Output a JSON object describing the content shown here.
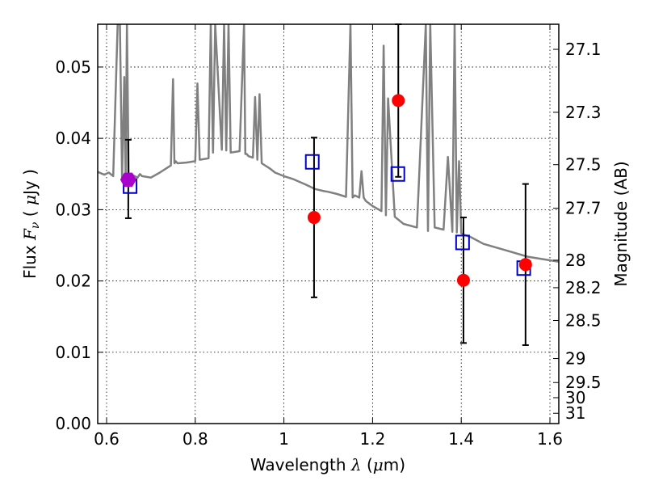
{
  "chart_data": {
    "type": "scatter",
    "title": "",
    "xlabel": "Wavelength  λ (μm)",
    "ylabel": "Flux  Fν  ( μJy )",
    "ylabel_right": "Magnitude (AB)",
    "xlim": [
      0.58,
      1.62
    ],
    "ylim": [
      0.0,
      0.056
    ],
    "grid": true,
    "legend": "none",
    "x_ticks": [
      0.6,
      0.8,
      1.0,
      1.2,
      1.4,
      1.6
    ],
    "x_tick_labels": [
      "0.6",
      "0.8",
      "1",
      "1.2",
      "1.4",
      "1.6"
    ],
    "y_ticks": [
      0.0,
      0.01,
      0.02,
      0.03,
      0.04,
      0.05
    ],
    "y_tick_labels": [
      "0.00",
      "0.01",
      "0.02",
      "0.03",
      "0.04",
      "0.05"
    ],
    "right_axis_ticks": [
      "27.1",
      "27.3",
      "27.5",
      "27.7",
      "28",
      "28.2",
      "28.5",
      "29",
      "29.5",
      "30",
      "31"
    ],
    "observed_points": {
      "color": "#ff0000",
      "x": [
        0.649,
        1.068,
        1.258,
        1.405,
        1.545
      ],
      "y": [
        0.0343,
        0.0289,
        0.0453,
        0.0201,
        0.0223
      ],
      "yerr_lo": [
        0.0055,
        0.0112,
        0.0107,
        0.0088,
        0.0113
      ],
      "yerr_hi": [
        0.0055,
        0.0112,
        0.0107,
        0.0088,
        0.0113
      ]
    },
    "highlight_point": {
      "color": "#aa00cc",
      "x": 0.649,
      "y": 0.0342
    },
    "model_points": {
      "color": "#0000cc",
      "x": [
        0.653,
        1.064,
        1.257,
        1.403,
        1.541
      ],
      "y": [
        0.0333,
        0.0367,
        0.035,
        0.0254,
        0.0218
      ]
    },
    "sed_line": {
      "color": "#808080",
      "x": [
        0.58,
        0.595,
        0.605,
        0.615,
        0.625,
        0.63,
        0.635,
        0.64,
        0.643,
        0.646,
        0.65,
        0.66,
        0.67,
        0.675,
        0.68,
        0.7,
        0.72,
        0.735,
        0.745,
        0.75,
        0.753,
        0.756,
        0.76,
        0.78,
        0.8,
        0.805,
        0.81,
        0.83,
        0.835,
        0.84,
        0.845,
        0.86,
        0.865,
        0.87,
        0.875,
        0.88,
        0.9,
        0.91,
        0.913,
        0.916,
        0.92,
        0.93,
        0.935,
        0.94,
        0.945,
        0.95,
        0.97,
        0.98,
        1.0,
        1.02,
        1.05,
        1.07,
        1.09,
        1.1,
        1.12,
        1.14,
        1.15,
        1.155,
        1.16,
        1.17,
        1.175,
        1.18,
        1.185,
        1.2,
        1.22,
        1.225,
        1.23,
        1.235,
        1.25,
        1.27,
        1.3,
        1.32,
        1.325,
        1.33,
        1.34,
        1.36,
        1.37,
        1.38,
        1.385,
        1.39,
        1.395,
        1.4,
        1.405,
        1.42,
        1.45,
        1.5,
        1.55,
        1.6,
        1.62
      ],
      "y": [
        0.0353,
        0.0349,
        0.0352,
        0.0347,
        0.056,
        0.056,
        0.0342,
        0.0486,
        0.0342,
        0.056,
        0.034,
        0.0348,
        0.0345,
        0.035,
        0.0347,
        0.0345,
        0.0352,
        0.0358,
        0.0362,
        0.0483,
        0.0365,
        0.0368,
        0.0365,
        0.0366,
        0.0368,
        0.0477,
        0.037,
        0.0372,
        0.056,
        0.038,
        0.056,
        0.0384,
        0.056,
        0.0383,
        0.056,
        0.038,
        0.0382,
        0.056,
        0.0378,
        0.0378,
        0.0375,
        0.0373,
        0.0458,
        0.037,
        0.0462,
        0.0365,
        0.0357,
        0.0352,
        0.0347,
        0.0343,
        0.0335,
        0.0329,
        0.0326,
        0.0325,
        0.0322,
        0.0318,
        0.056,
        0.0317,
        0.032,
        0.0317,
        0.0354,
        0.0317,
        0.0312,
        0.0305,
        0.0298,
        0.053,
        0.0292,
        0.0456,
        0.029,
        0.028,
        0.0275,
        0.056,
        0.027,
        0.056,
        0.0275,
        0.0272,
        0.0374,
        0.0269,
        0.056,
        0.0268,
        0.0368,
        0.0267,
        0.0265,
        0.0262,
        0.0252,
        0.0243,
        0.0234,
        0.0229,
        0.0227
      ]
    }
  }
}
